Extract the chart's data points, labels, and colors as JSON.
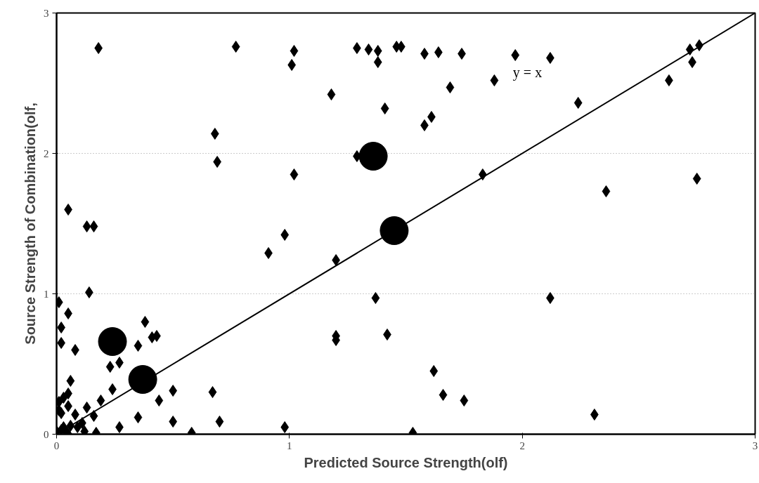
{
  "chart_data": {
    "type": "scatter",
    "xlabel": "Predicted Source Strength(olf)",
    "ylabel": "Source Strength of Combination(olf,",
    "xlim": [
      0,
      3
    ],
    "ylim": [
      0,
      3
    ],
    "xticks": [
      0,
      1,
      2,
      3
    ],
    "yticks": [
      0,
      1,
      2,
      3
    ],
    "grid": "y",
    "annotations": [
      "y = x"
    ],
    "series": [
      {
        "marker": "diamond",
        "color": "#000000",
        "x": [
          0.18,
          0.77,
          1.02,
          1.01,
          1.29,
          1.34,
          1.38,
          1.38,
          1.46,
          1.48,
          1.58,
          1.64,
          1.74,
          1.97,
          2.12,
          1.69,
          1.88,
          1.18,
          1.41,
          1.61,
          1.58,
          2.24,
          2.63,
          2.72,
          2.76,
          2.73,
          0.68,
          0.69,
          1.29,
          1.02,
          1.83,
          2.36,
          2.75,
          0.05,
          0.13,
          0.16,
          0.91,
          0.98,
          1.2,
          0.14,
          1.37,
          2.12,
          0.01,
          0.05,
          0.02,
          0.38,
          0.41,
          0.43,
          0.02,
          0.08,
          0.35,
          1.2,
          1.2,
          1.42,
          0.27,
          0.23,
          0.24,
          0.06,
          0.44,
          0.5,
          0.19,
          0.67,
          0.01,
          0.03,
          0.05,
          0.01,
          0.02,
          0.05,
          0.08,
          0.13,
          0.16,
          1.62,
          1.66,
          1.75,
          2.31,
          0.35,
          0.7,
          0.5,
          0.27,
          0.98,
          0.58,
          1.53,
          0.12,
          0.17,
          0.0,
          0.03,
          0.04,
          0.06,
          0.09,
          0.11,
          0.05,
          0.02
        ],
        "values": [
          2.75,
          2.76,
          2.73,
          2.63,
          2.75,
          2.74,
          2.73,
          2.65,
          2.76,
          2.76,
          2.71,
          2.72,
          2.71,
          2.7,
          2.68,
          2.47,
          2.52,
          2.42,
          2.32,
          2.26,
          2.2,
          2.36,
          2.52,
          2.74,
          2.77,
          2.65,
          2.14,
          1.94,
          1.98,
          1.85,
          1.85,
          1.73,
          1.82,
          1.6,
          1.48,
          1.48,
          1.29,
          1.42,
          1.24,
          1.01,
          0.97,
          0.97,
          0.94,
          0.86,
          0.76,
          0.8,
          0.69,
          0.7,
          0.65,
          0.6,
          0.63,
          0.7,
          0.67,
          0.71,
          0.51,
          0.48,
          0.32,
          0.38,
          0.24,
          0.31,
          0.24,
          0.3,
          0.23,
          0.26,
          0.29,
          0.17,
          0.15,
          0.2,
          0.14,
          0.19,
          0.13,
          0.45,
          0.28,
          0.24,
          0.14,
          0.12,
          0.09,
          0.09,
          0.05,
          0.05,
          0.01,
          0.01,
          0.02,
          0.01,
          0.02,
          0.05,
          0.02,
          0.06,
          0.05,
          0.08,
          0.0,
          0.03
        ]
      },
      {
        "marker": "circle",
        "color": "#000000",
        "x": [
          0.24,
          0.37,
          1.36,
          1.45
        ],
        "values": [
          0.66,
          0.39,
          1.98,
          1.45
        ]
      },
      {
        "type": "line",
        "line_style": "solid",
        "color": "#000000",
        "x": [
          0,
          3
        ],
        "values": [
          0,
          3
        ]
      }
    ]
  }
}
